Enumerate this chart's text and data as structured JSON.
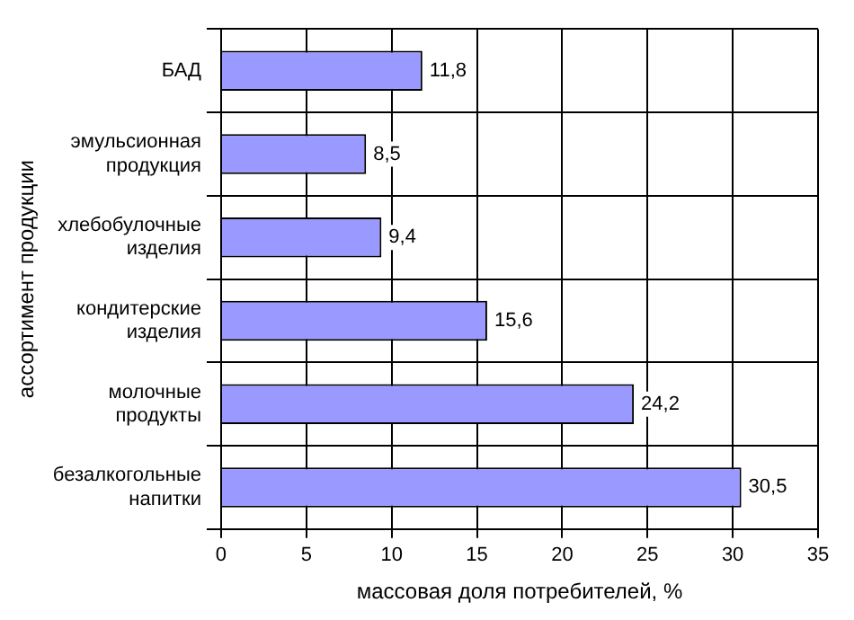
{
  "chart_data": {
    "type": "bar",
    "orientation": "horizontal",
    "xlabel": "массовая доля потребителей, %",
    "ylabel": "ассортимент продукции",
    "categories": [
      "БАД",
      "эмульсионная продукция",
      "хлебобулочные изделия",
      "кондитерские изделия",
      "молочные продукты",
      "безалкогольные напитки"
    ],
    "values": [
      11.8,
      8.5,
      9.4,
      15.6,
      24.2,
      30.5
    ],
    "value_labels": [
      "11,8",
      "8,5",
      "9,4",
      "15,6",
      "24,2",
      "30,5"
    ],
    "color": "#9999ff",
    "xlim": [
      0,
      35
    ],
    "xticks": [
      0,
      5,
      10,
      15,
      20,
      25,
      30,
      35
    ],
    "grid": true,
    "legend": false
  }
}
